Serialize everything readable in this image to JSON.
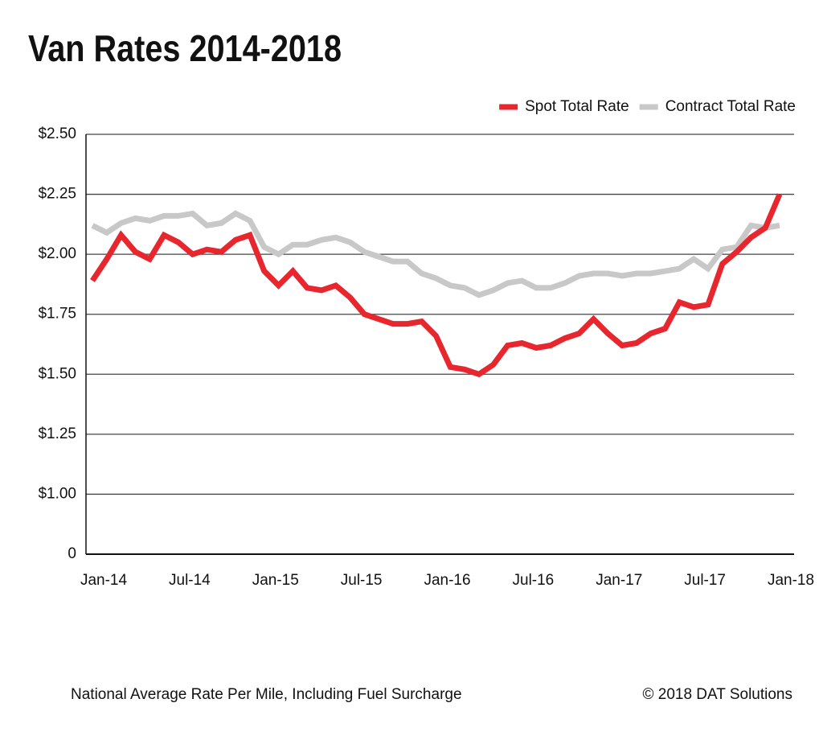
{
  "chart_data": {
    "type": "line",
    "title": "Van Rates 2014-2018",
    "caption": "National Average Rate Per Mile, Including Fuel Surcharge",
    "credit": "© 2018 DAT Solutions",
    "legend": "top-right",
    "grid": true,
    "categories": [
      "Jan-14",
      null,
      null,
      null,
      null,
      null,
      "Jul-14",
      null,
      null,
      null,
      null,
      null,
      "Jan-15",
      null,
      null,
      null,
      null,
      null,
      "Jul-15",
      null,
      null,
      null,
      null,
      null,
      "Jan-16",
      null,
      null,
      null,
      null,
      null,
      "Jul-16",
      null,
      null,
      null,
      null,
      null,
      "Jan-17",
      null,
      null,
      null,
      null,
      null,
      "Jul-17",
      null,
      null,
      null,
      null,
      null,
      "Jan-18"
    ],
    "ylim": [
      0,
      2.5
    ],
    "yticks": [
      0,
      {
        "value": 1,
        "label": "$1.00"
      },
      {
        "value": 1.25,
        "label": "$1.25"
      },
      {
        "value": 1.5,
        "label": "$1.50"
      },
      {
        "value": 1.75,
        "label": "$1.75"
      },
      {
        "value": 2,
        "label": "$2.00"
      },
      {
        "value": 2.25,
        "label": "$2.25"
      },
      {
        "value": 2.5,
        "label": "$2.50"
      }
    ],
    "series": [
      {
        "name": "Spot Total Rate",
        "color": "#e8262d",
        "values": [
          1.89,
          1.98,
          2.08,
          2.01,
          1.98,
          2.08,
          2.05,
          2.0,
          2.02,
          2.01,
          2.06,
          2.08,
          1.93,
          1.87,
          1.93,
          1.86,
          1.85,
          1.87,
          1.82,
          1.75,
          1.73,
          1.71,
          1.71,
          1.72,
          1.66,
          1.53,
          1.52,
          1.5,
          1.54,
          1.62,
          1.63,
          1.61,
          1.62,
          1.65,
          1.67,
          1.73,
          1.67,
          1.62,
          1.63,
          1.67,
          1.69,
          1.8,
          1.78,
          1.79,
          1.96,
          2.01,
          2.07,
          2.11,
          2.25
        ]
      },
      {
        "name": "Contract Total Rate",
        "color": "#c8c8c8",
        "values": [
          2.12,
          2.09,
          2.13,
          2.15,
          2.14,
          2.16,
          2.16,
          2.17,
          2.12,
          2.13,
          2.17,
          2.14,
          2.03,
          2.0,
          2.04,
          2.04,
          2.06,
          2.07,
          2.05,
          2.01,
          1.99,
          1.97,
          1.97,
          1.92,
          1.9,
          1.87,
          1.86,
          1.83,
          1.85,
          1.88,
          1.89,
          1.86,
          1.86,
          1.88,
          1.91,
          1.92,
          1.92,
          1.91,
          1.92,
          1.92,
          1.93,
          1.94,
          1.98,
          1.94,
          2.02,
          2.03,
          2.12,
          2.11,
          2.12
        ]
      }
    ]
  }
}
